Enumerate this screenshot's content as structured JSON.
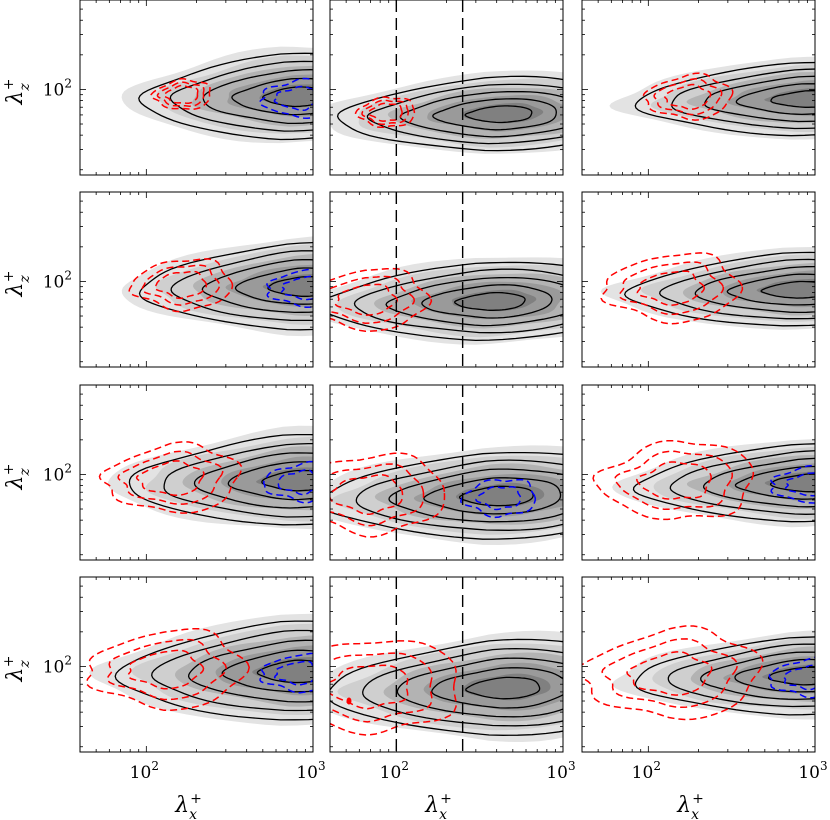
{
  "chart_data": {
    "type": "contour",
    "layout": "4 rows x 3 columns grid of spectral contour panels",
    "x_axis": {
      "label": "λx+",
      "scale": "log",
      "xlim": [
        40,
        1000
      ],
      "ticks": [
        100,
        1000
      ],
      "tick_labels": [
        "10^2",
        "10^3"
      ]
    },
    "y_axis": {
      "label": "λz+",
      "scale": "log",
      "ylim": [
        18,
        600
      ],
      "ticks": [
        100
      ],
      "tick_labels": [
        "10^2"
      ]
    },
    "vertical_dashed_lines": {
      "panel_column": 2,
      "x_values": [
        100,
        250
      ],
      "color": "#000000"
    },
    "series": [
      {
        "name": "filled contours",
        "style": "grayscale filled",
        "levels": 5
      },
      {
        "name": "solid contours",
        "style": "black solid line",
        "color": "#000000"
      },
      {
        "name": "positive dashed contours",
        "style": "red dashed line",
        "color": "#ff0000"
      },
      {
        "name": "negative dashed contours",
        "style": "blue dashed line",
        "color": "#0000ff"
      }
    ],
    "panels": [
      {
        "row": 1,
        "col": 1,
        "peak": [
          640,
          88
        ],
        "xspread": 0.9,
        "yspread": 0.4,
        "red_extent": 0.3,
        "blue": true
      },
      {
        "row": 1,
        "col": 2,
        "peak": [
          340,
          62
        ],
        "xspread": 0.95,
        "yspread": 0.34,
        "red_extent": 0.3,
        "blue": false
      },
      {
        "row": 1,
        "col": 3,
        "peak": [
          720,
          84
        ],
        "xspread": 1.0,
        "yspread": 0.34,
        "red_extent": 0.5,
        "blue": false
      },
      {
        "row": 2,
        "col": 1,
        "peak": [
          700,
          92
        ],
        "xspread": 0.95,
        "yspread": 0.4,
        "red_extent": 0.6,
        "blue": true
      },
      {
        "row": 2,
        "col": 2,
        "peak": [
          300,
          68
        ],
        "xspread": 1.0,
        "yspread": 0.36,
        "red_extent": 0.75,
        "blue": false
      },
      {
        "row": 2,
        "col": 3,
        "peak": [
          640,
          86
        ],
        "xspread": 1.0,
        "yspread": 0.34,
        "red_extent": 0.85,
        "blue": false
      },
      {
        "row": 3,
        "col": 1,
        "peak": [
          660,
          90
        ],
        "xspread": 1.0,
        "yspread": 0.42,
        "red_extent": 0.85,
        "blue": true
      },
      {
        "row": 3,
        "col": 2,
        "peak": [
          330,
          66
        ],
        "xspread": 1.05,
        "yspread": 0.4,
        "red_extent": 1.0,
        "blue": true
      },
      {
        "row": 3,
        "col": 3,
        "peak": [
          720,
          86
        ],
        "xspread": 1.0,
        "yspread": 0.36,
        "red_extent": 1.0,
        "blue": true
      },
      {
        "row": 4,
        "col": 1,
        "peak": [
          640,
          92
        ],
        "xspread": 1.05,
        "yspread": 0.46,
        "red_extent": 1.0,
        "blue": true
      },
      {
        "row": 4,
        "col": 2,
        "peak": [
          360,
          66
        ],
        "xspread": 1.05,
        "yspread": 0.44,
        "red_extent": 1.2,
        "blue": false
      },
      {
        "row": 4,
        "col": 3,
        "peak": [
          700,
          84
        ],
        "xspread": 1.0,
        "yspread": 0.36,
        "red_extent": 1.15,
        "blue": true
      }
    ]
  }
}
